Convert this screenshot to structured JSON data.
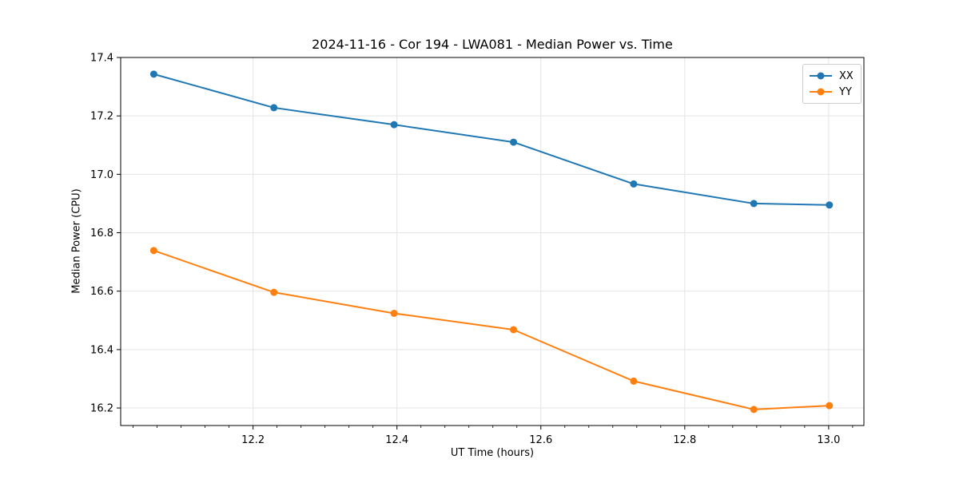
{
  "chart_data": {
    "type": "line",
    "title": "2024-11-16 - Cor 194 - LWA081 - Median Power vs. Time",
    "xlabel": "UT Time (hours)",
    "ylabel": "Median Power (CPU)",
    "xlim": [
      12.016,
      13.049
    ],
    "ylim": [
      16.14,
      17.4
    ],
    "xticks": [
      12.2,
      12.4,
      12.6,
      12.8,
      13.0
    ],
    "yticks": [
      16.2,
      16.4,
      16.6,
      16.8,
      17.0,
      17.2,
      17.4
    ],
    "x_minor_step": 0.0333333,
    "grid": true,
    "legend_position": "upper right",
    "x": [
      12.062,
      12.229,
      12.396,
      12.562,
      12.729,
      12.896,
      13.001
    ],
    "series": [
      {
        "name": "XX",
        "color": "#1f77b4",
        "values": [
          17.343,
          17.228,
          17.17,
          17.11,
          16.967,
          16.9,
          16.895
        ]
      },
      {
        "name": "YY",
        "color": "#ff7f0e",
        "values": [
          16.739,
          16.596,
          16.524,
          16.468,
          16.292,
          16.195,
          16.208
        ]
      }
    ]
  }
}
